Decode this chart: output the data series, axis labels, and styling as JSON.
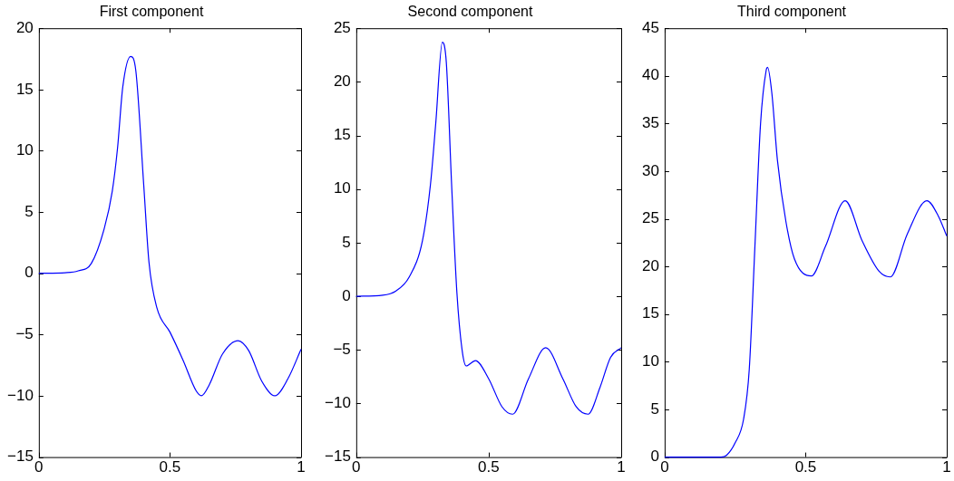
{
  "chart_data": [
    {
      "type": "line",
      "title": "First component",
      "xlim": [
        0,
        1
      ],
      "xticks": [
        0,
        0.5,
        1
      ],
      "ylim": [
        -15,
        20
      ],
      "yticks": [
        -15,
        -10,
        -5,
        0,
        5,
        10,
        15,
        20
      ],
      "grid": false,
      "legend": false,
      "marker": "none",
      "series": [
        {
          "color": "#0000ff",
          "x": [
            0,
            0.1,
            0.15,
            0.2,
            0.25,
            0.28,
            0.3,
            0.32,
            0.35,
            0.37,
            0.4,
            0.42,
            0.45,
            0.5,
            0.55,
            0.6,
            0.62,
            0.65,
            0.7,
            0.76,
            0.8,
            0.85,
            0.9,
            0.95,
            1
          ],
          "values": [
            0,
            0.05,
            0.2,
            0.8,
            3.7,
            6.7,
            10.2,
            15.2,
            17.7,
            16.5,
            7.2,
            0.9,
            -2.8,
            -4.8,
            -7.1,
            -9.6,
            -10,
            -9.1,
            -6.6,
            -5.5,
            -6.3,
            -8.8,
            -10,
            -8.6,
            -6.2
          ]
        }
      ]
    },
    {
      "type": "line",
      "title": "Second component",
      "xlim": [
        0,
        1
      ],
      "xticks": [
        0,
        0.5,
        1
      ],
      "ylim": [
        -15,
        25
      ],
      "yticks": [
        -15,
        -10,
        -5,
        0,
        5,
        10,
        15,
        20,
        25
      ],
      "grid": false,
      "legend": false,
      "marker": "none",
      "series": [
        {
          "color": "#0000ff",
          "x": [
            0,
            0.1,
            0.15,
            0.2,
            0.25,
            0.28,
            0.3,
            0.325,
            0.34,
            0.36,
            0.38,
            0.4,
            0.415,
            0.45,
            0.5,
            0.55,
            0.59,
            0.65,
            0.715,
            0.78,
            0.83,
            0.875,
            0.92,
            0.96,
            1
          ],
          "values": [
            0,
            0.1,
            0.5,
            1.8,
            5.2,
            10.4,
            16.1,
            23.7,
            21.8,
            10.4,
            0.3,
            -5.1,
            -6.5,
            -6,
            -7.7,
            -10.3,
            -11,
            -7.7,
            -4.8,
            -7.7,
            -10.3,
            -11,
            -8.5,
            -5.7,
            -4.8
          ]
        }
      ]
    },
    {
      "type": "line",
      "title": "Third component",
      "xlim": [
        0,
        1
      ],
      "xticks": [
        0,
        0.5,
        1
      ],
      "ylim": [
        0,
        45
      ],
      "yticks": [
        0,
        5,
        10,
        15,
        20,
        25,
        30,
        35,
        40,
        45
      ],
      "grid": false,
      "legend": false,
      "marker": "none",
      "series": [
        {
          "color": "#0000ff",
          "x": [
            0,
            0.2,
            0.22,
            0.25,
            0.28,
            0.3,
            0.32,
            0.34,
            0.36,
            0.365,
            0.38,
            0.4,
            0.43,
            0.46,
            0.52,
            0.57,
            0.64,
            0.7,
            0.76,
            0.8,
            0.86,
            0.93,
            0.97,
            1
          ],
          "values": [
            0,
            0,
            0.2,
            1.5,
            4,
            9.2,
            22.1,
            35,
            40.6,
            40.9,
            38.2,
            31.1,
            24.7,
            20.8,
            19,
            22.1,
            26.9,
            22.7,
            19.5,
            18.9,
            23.4,
            26.9,
            25.3,
            23.2
          ]
        }
      ]
    }
  ]
}
